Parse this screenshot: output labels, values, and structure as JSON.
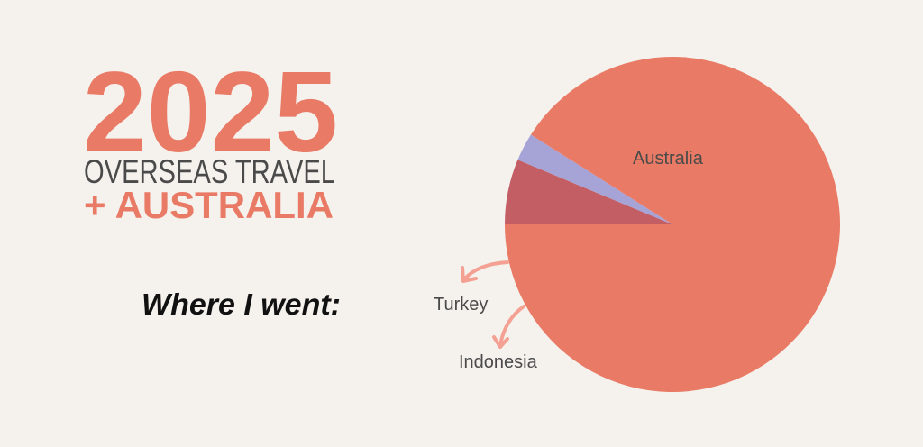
{
  "headline": {
    "year": "2025",
    "subtitle": "OVERSEAS TRAVEL",
    "tagline": "+ AUSTRALIA",
    "intro": "Where I went:"
  },
  "colors": {
    "background": "#f5f2ee",
    "accent": "#e97b66",
    "text_dark": "#4a4a4a",
    "arrow": "#f4a193"
  },
  "chart_data": {
    "type": "pie",
    "title": "",
    "start_angle_deg": 180,
    "direction": "counterclockwise",
    "slices": [
      {
        "label": "Turkey",
        "value": 6.3,
        "color": "#c25e64"
      },
      {
        "label": "Indonesia",
        "value": 2.7,
        "color": "#a6a3d6"
      },
      {
        "label": "Australia",
        "value": 91.0,
        "color": "#e97b66"
      }
    ]
  }
}
